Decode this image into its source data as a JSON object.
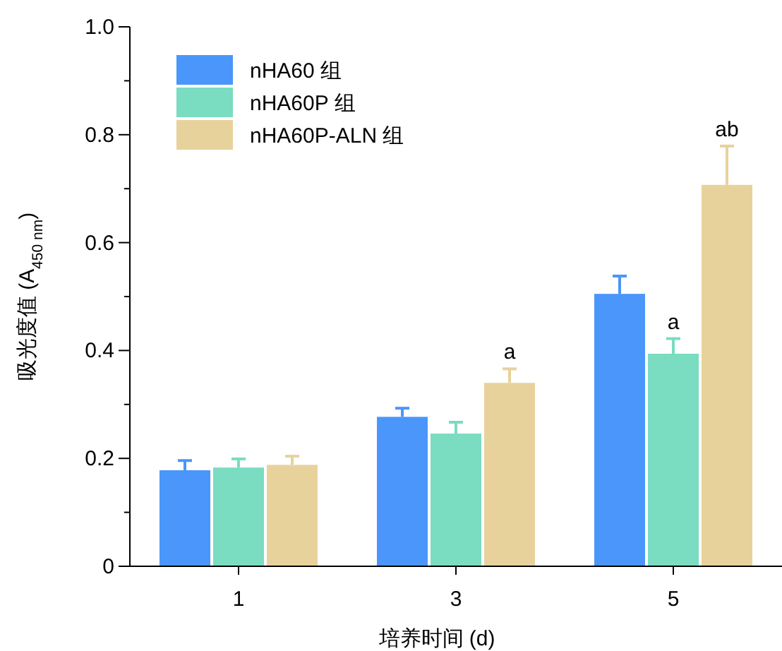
{
  "chart_data": {
    "type": "bar",
    "xlabel": "培养时间 (d)",
    "ylabel": "吸光度值 (A$_{450 nm}$)",
    "categories": [
      "1",
      "3",
      "5"
    ],
    "series": [
      {
        "name": "nHA60 组",
        "color": "#4a96fa",
        "values": [
          0.178,
          0.277,
          0.505
        ],
        "errors": [
          0.018,
          0.016,
          0.033
        ]
      },
      {
        "name": "nHA60P 组",
        "color": "#7adcc0",
        "values": [
          0.183,
          0.246,
          0.394
        ],
        "errors": [
          0.016,
          0.021,
          0.028
        ]
      },
      {
        "name": "nHA60P-ALN 组",
        "color": "#e8d29c",
        "values": [
          0.188,
          0.34,
          0.707
        ],
        "errors": [
          0.016,
          0.026,
          0.072
        ]
      }
    ],
    "ylim": [
      0,
      1
    ],
    "yticks": [
      0,
      {
        "value": 0.1,
        "label": null
      },
      0.2,
      {
        "value": 0.3,
        "label": null
      },
      0.4,
      {
        "value": 0.5,
        "label": null
      },
      0.6,
      {
        "value": 0.7,
        "label": null
      },
      0.8,
      {
        "value": 0.9,
        "label": null
      },
      {
        "value": 1,
        "label": "1.0"
      }
    ],
    "annotations": [
      "a",
      {
        "text": "a",
        "x": "5",
        "y": 0.422
      },
      "ab"
    ],
    "legend": "top left",
    "grid": false
  }
}
